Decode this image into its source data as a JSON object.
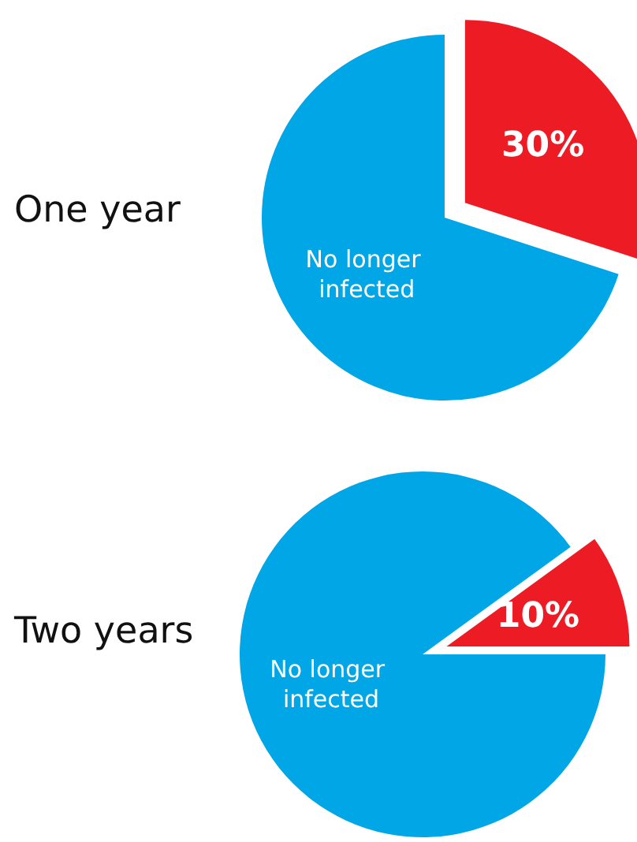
{
  "chart_data": [
    {
      "type": "pie",
      "title": "One year",
      "categories": [
        null,
        "No longer infected"
      ],
      "values": [
        30,
        70
      ],
      "colors": [
        "#ed1c24",
        "#00a6e6"
      ],
      "value_labels": [
        "30%",
        null
      ],
      "legend": false
    },
    {
      "type": "pie",
      "title": "Two years",
      "categories": [
        null,
        "No longer infected"
      ],
      "values": [
        10,
        90
      ],
      "colors": [
        "#ed1c24",
        "#00a6e6"
      ],
      "value_labels": [
        "10%",
        null
      ],
      "legend": false
    }
  ]
}
